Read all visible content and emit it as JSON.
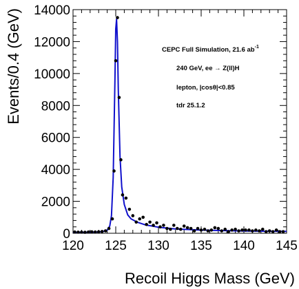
{
  "chart_data": {
    "type": "line",
    "title": "",
    "xlabel": "Recoil Higgs Mass (GeV)",
    "ylabel": "Events/0.4 (GeV)",
    "xlim": [
      120,
      145
    ],
    "ylim": [
      0,
      14000
    ],
    "xticks": [
      120,
      125,
      130,
      135,
      140,
      145
    ],
    "xtick_labels": [
      "120",
      "125",
      "130",
      "135",
      "140",
      "145"
    ],
    "yticks": [
      0,
      2000,
      4000,
      6000,
      8000,
      10000,
      12000,
      14000
    ],
    "ytick_labels": [
      "0",
      "2000",
      "4000",
      "6000",
      "8000",
      "10000",
      "12000",
      "14000"
    ],
    "grid": false,
    "annotations": {
      "line1": "CEPC Full Simulation, 21.6 ab",
      "line1_sup": "-1",
      "line2": "240 GeV, ee → Z(ll)H",
      "line3": "lepton, |cosθ|<0.85",
      "line4": "tdr 25.1.2"
    },
    "series": [
      {
        "kind": "data_points",
        "color": "#000000",
        "x": [
          120.2,
          120.6,
          121.0,
          121.4,
          121.8,
          122.2,
          122.6,
          123.0,
          123.4,
          123.8,
          124.2,
          124.6,
          124.8,
          125.0,
          125.2,
          125.4,
          125.6,
          125.8,
          126.2,
          126.6,
          127.0,
          127.4,
          127.8,
          128.2,
          128.6,
          129.0,
          129.4,
          129.8,
          130.2,
          130.6,
          131.0,
          131.4,
          131.8,
          132.2,
          132.6,
          133.0,
          133.4,
          133.8,
          134.2,
          134.6,
          135.0,
          135.4,
          135.8,
          136.2,
          136.6,
          137.0,
          137.4,
          137.8,
          138.2,
          138.6,
          139.0,
          139.4,
          139.8,
          140.2,
          140.6,
          141.0,
          141.4,
          141.8,
          142.2,
          142.6,
          143.0,
          143.4,
          143.8,
          144.2,
          144.6
        ],
        "y": [
          80,
          70,
          70,
          60,
          80,
          90,
          80,
          90,
          110,
          150,
          300,
          900,
          3900,
          10800,
          13500,
          8500,
          4600,
          2400,
          2200,
          1500,
          1100,
          700,
          900,
          1000,
          550,
          700,
          500,
          650,
          400,
          500,
          300,
          250,
          500,
          300,
          250,
          450,
          350,
          300,
          150,
          300,
          200,
          250,
          150,
          200,
          350,
          300,
          150,
          250,
          100,
          200,
          250,
          150,
          200,
          200,
          200,
          150,
          200,
          150,
          250,
          100,
          150,
          100,
          200,
          100,
          100
        ]
      },
      {
        "kind": "fit",
        "color": "#1010cc",
        "x": [
          120,
          121,
          122,
          123,
          123.5,
          124,
          124.3,
          124.5,
          124.7,
          124.9,
          125.0,
          125.1,
          125.2,
          125.3,
          125.5,
          125.7,
          126,
          126.4,
          126.8,
          127.5,
          128.5,
          130,
          132,
          135,
          140,
          145
        ],
        "y": [
          60,
          60,
          65,
          80,
          110,
          200,
          450,
          1100,
          3500,
          9500,
          12800,
          13400,
          12000,
          9000,
          4800,
          2900,
          1800,
          1150,
          900,
          700,
          520,
          380,
          270,
          200,
          140,
          120
        ]
      }
    ]
  }
}
